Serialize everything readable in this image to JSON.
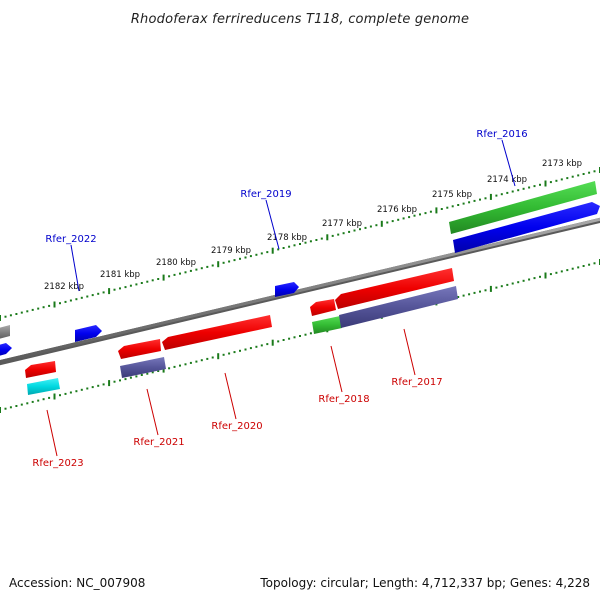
{
  "title": "Rhodoferax ferrireducens T118, complete genome",
  "footer": {
    "accession": "Accession: NC_007908",
    "summary": "Topology: circular; Length: 4,712,337 bp; Genes: 4,228"
  },
  "scale_labels": [
    "2182 kbp",
    "2181 kbp",
    "2180 kbp",
    "2179 kbp",
    "2178 kbp",
    "2177 kbp",
    "2176 kbp",
    "2175 kbp",
    "2174 kbp",
    "2173 kbp"
  ],
  "gene_labels": {
    "forward": [
      "Rfer_2022",
      "Rfer_2019",
      "Rfer_2016"
    ],
    "reverse": [
      "Rfer_2023",
      "Rfer_2021",
      "Rfer_2020",
      "Rfer_2018",
      "Rfer_2017"
    ]
  },
  "colors": {
    "forward_label": "#0000cc",
    "reverse_label": "#cc0000",
    "backbone": "#808080",
    "scale_ticks": "#1a7a1a",
    "cds_forward": "#0000ee",
    "cds_reverse": "#ee0000",
    "rna_green": "#33bb33",
    "cyan_feature": "#00d8e0",
    "purple_feature": "#555599"
  }
}
